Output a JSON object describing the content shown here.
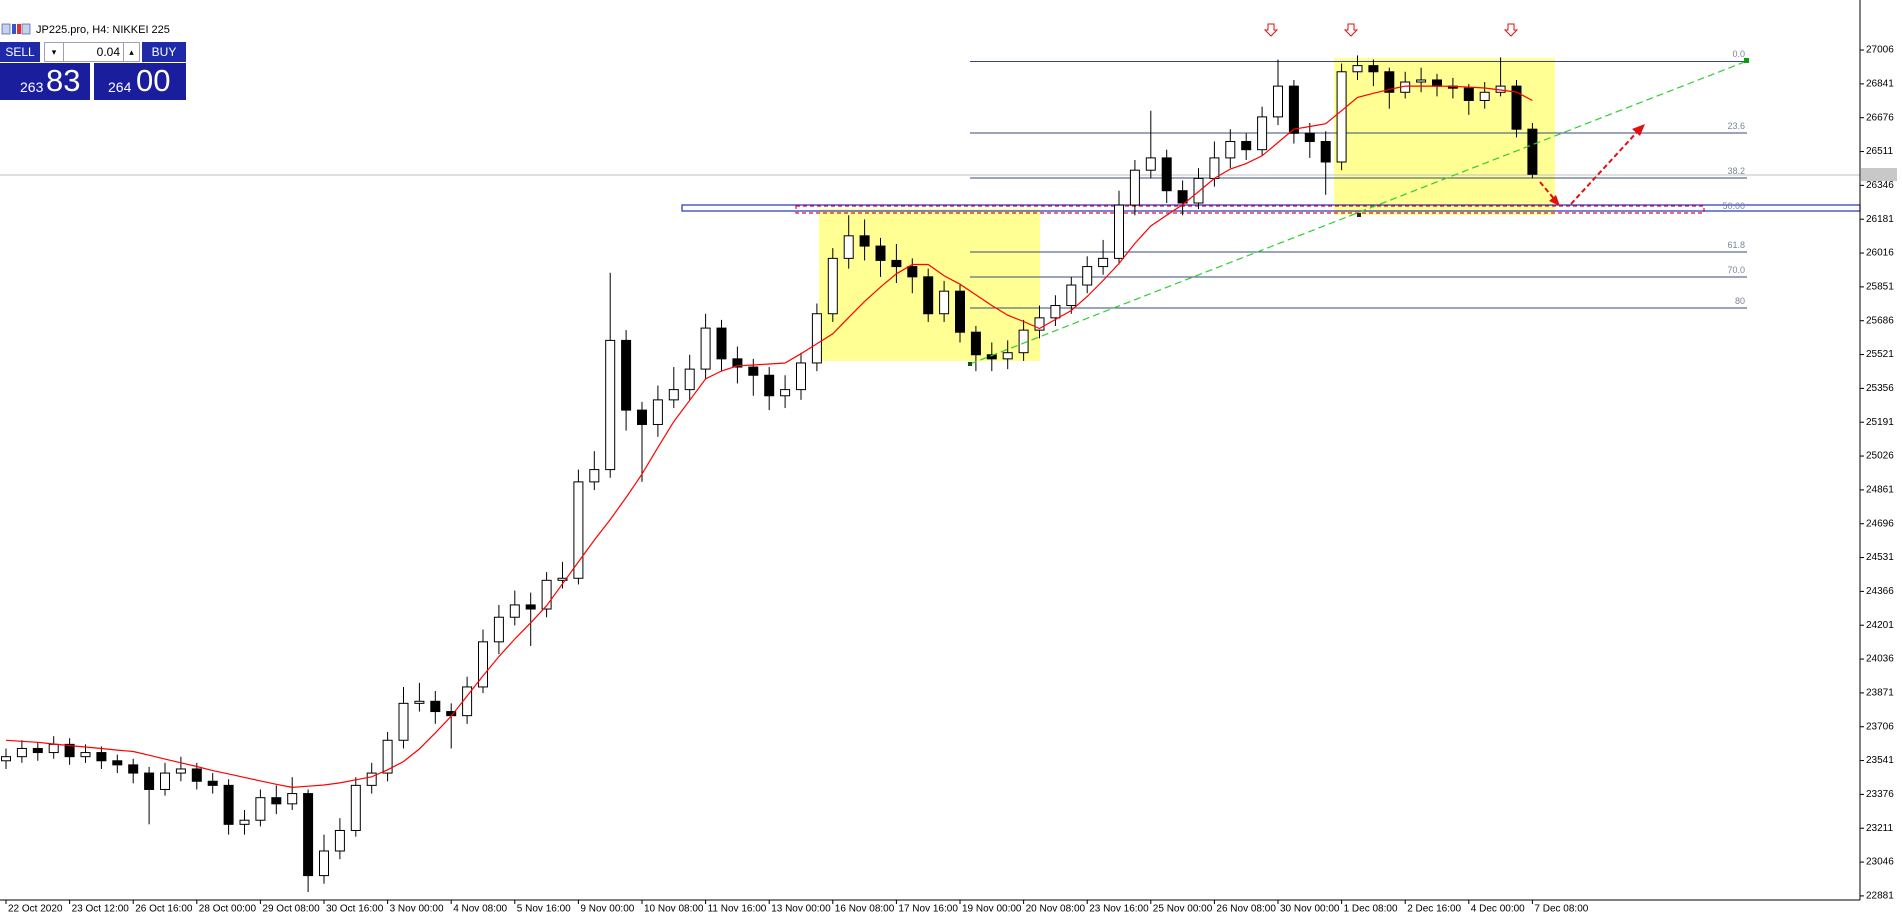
{
  "chart_data": {
    "type": "candlestick",
    "title": "JP225.pro, H4: NIKKEI 225",
    "categories": [
      "22 Oct 2020",
      null,
      null,
      null,
      "23 Oct 12:00",
      null,
      null,
      null,
      "26 Oct 16:00",
      null,
      null,
      null,
      "28 Oct 00:00",
      null,
      null,
      null,
      "29 Oct 08:00",
      null,
      null,
      null,
      "30 Oct 16:00",
      null,
      null,
      null,
      "3 Nov 00:00",
      null,
      null,
      null,
      "4 Nov 08:00",
      null,
      null,
      null,
      "5 Nov 16:00",
      null,
      null,
      null,
      "9 Nov 00:00",
      null,
      null,
      null,
      "10 Nov 08:00",
      null,
      null,
      null,
      "11 Nov 16:00",
      null,
      null,
      null,
      "13 Nov 00:00",
      null,
      null,
      null,
      "16 Nov 08:00",
      null,
      null,
      null,
      "17 Nov 16:00",
      null,
      null,
      null,
      "19 Nov 00:00",
      null,
      null,
      null,
      "20 Nov 08:00",
      null,
      null,
      null,
      "23 Nov 16:00",
      null,
      null,
      null,
      "25 Nov 00:00",
      null,
      null,
      null,
      "26 Nov 08:00",
      null,
      null,
      null,
      "30 Nov 00:00",
      null,
      null,
      null,
      "1 Dec 08:00",
      null,
      null,
      null,
      "2 Dec 16:00",
      null,
      null,
      null,
      "4 Dec 00:00",
      null,
      null,
      null,
      "7 Dec 08:00"
    ],
    "open": [
      23540,
      23560,
      23600,
      23580,
      23620,
      23560,
      23580,
      23540,
      23520,
      23480,
      23400,
      23480,
      23500,
      23440,
      23420,
      23230,
      23250,
      23360,
      23330,
      23380,
      22980,
      23100,
      23200,
      23420,
      23480,
      23640,
      23820,
      23830,
      23780,
      23760,
      23900,
      24120,
      24240,
      24300,
      24280,
      24420,
      24430,
      24900,
      24960,
      25590,
      25250,
      25180,
      25300,
      25350,
      25450,
      25650,
      25500,
      25460,
      25420,
      25320,
      25350,
      25480,
      25720,
      25990,
      26100,
      26050,
      25980,
      25950,
      25900,
      25720,
      25830,
      25630,
      25520,
      25500,
      25530,
      25640,
      25700,
      25760,
      25860,
      25950,
      25990,
      26250,
      26420,
      26480,
      26320,
      26260,
      26380,
      26480,
      26560,
      26520,
      26680,
      26830,
      26600,
      26560,
      26460,
      26900,
      26930,
      26900,
      26800,
      26850,
      26860,
      26830,
      26820,
      26760,
      26800,
      26830,
      26620
    ],
    "high": [
      23600,
      23640,
      23630,
      23660,
      23650,
      23620,
      23610,
      23570,
      23550,
      23510,
      23530,
      23560,
      23530,
      23480,
      23450,
      23300,
      23400,
      23420,
      23460,
      23400,
      23180,
      23260,
      23460,
      23530,
      23680,
      23900,
      23920,
      23880,
      23820,
      23950,
      24180,
      24300,
      24370,
      24360,
      24460,
      24510,
      24960,
      25050,
      25920,
      25640,
      25290,
      25370,
      25460,
      25520,
      25720,
      25690,
      25560,
      25500,
      25460,
      25420,
      25530,
      25770,
      26040,
      26200,
      26180,
      26090,
      26060,
      25990,
      25940,
      25880,
      25860,
      25660,
      25580,
      25590,
      25690,
      25760,
      25810,
      25900,
      26000,
      26080,
      26320,
      26470,
      26710,
      26520,
      26370,
      26430,
      26560,
      26620,
      26600,
      26730,
      26960,
      26860,
      26650,
      26610,
      26940,
      26980,
      26960,
      26920,
      26900,
      26920,
      26890,
      26870,
      26840,
      26850,
      26970,
      26860,
      26650
    ],
    "low": [
      23500,
      23530,
      23540,
      23550,
      23520,
      23530,
      23500,
      23480,
      23430,
      23230,
      23370,
      23440,
      23400,
      23380,
      23180,
      23180,
      23220,
      23280,
      23300,
      22900,
      22940,
      23060,
      23170,
      23380,
      23440,
      23600,
      23780,
      23720,
      23600,
      23720,
      23870,
      24060,
      24200,
      24100,
      24240,
      24380,
      24400,
      24860,
      24920,
      25150,
      24900,
      25120,
      25260,
      25300,
      25400,
      25440,
      25380,
      25320,
      25250,
      25260,
      25300,
      25440,
      25680,
      25940,
      25980,
      25900,
      25870,
      25820,
      25680,
      25680,
      25580,
      25440,
      25440,
      25450,
      25490,
      25600,
      25660,
      25720,
      25820,
      25910,
      25960,
      26200,
      26380,
      26260,
      26200,
      26230,
      26340,
      26430,
      26470,
      26490,
      26640,
      26550,
      26480,
      26300,
      26420,
      26860,
      26830,
      26720,
      26770,
      26800,
      26780,
      26770,
      26690,
      26720,
      26780,
      26580,
      26380
    ],
    "close": [
      23560,
      23600,
      23580,
      23620,
      23560,
      23580,
      23540,
      23520,
      23480,
      23400,
      23480,
      23500,
      23440,
      23420,
      23230,
      23250,
      23360,
      23330,
      23380,
      22980,
      23100,
      23200,
      23420,
      23480,
      23640,
      23820,
      23830,
      23780,
      23760,
      23900,
      24120,
      24240,
      24300,
      24280,
      24420,
      24430,
      24900,
      24960,
      25590,
      25250,
      25180,
      25300,
      25350,
      25450,
      25650,
      25500,
      25460,
      25420,
      25320,
      25350,
      25480,
      25720,
      25990,
      26100,
      26050,
      25980,
      25950,
      25900,
      25720,
      25830,
      25630,
      25520,
      25500,
      25530,
      25640,
      25700,
      25760,
      25860,
      25950,
      25990,
      26250,
      26420,
      26480,
      26320,
      26260,
      26380,
      26480,
      26560,
      26520,
      26680,
      26830,
      26600,
      26560,
      26460,
      26900,
      26930,
      26900,
      26800,
      26850,
      26860,
      26830,
      26820,
      26760,
      26800,
      26830,
      26620,
      26400
    ],
    "up_color": "#ffffff",
    "down_color": "#000000",
    "ma": {
      "color": "#ff0000",
      "values": [
        23640,
        23635,
        23630,
        23622,
        23614,
        23607,
        23600,
        23592,
        23585,
        23567,
        23548,
        23530,
        23512,
        23492,
        23476,
        23459,
        23442,
        23425,
        23410,
        23416,
        23422,
        23432,
        23447,
        23462,
        23496,
        23536,
        23598,
        23676,
        23758,
        23856,
        23954,
        24048,
        24134,
        24213,
        24296,
        24403,
        24510,
        24616,
        24716,
        24824,
        24938,
        25068,
        25194,
        25298,
        25402,
        25441,
        25466,
        25470,
        25475,
        25480,
        25525,
        25574,
        25622,
        25702,
        25780,
        25850,
        25915,
        25960,
        25960,
        25905,
        25864,
        25812,
        25760,
        25713,
        25682,
        25648,
        25692,
        25736,
        25804,
        25882,
        25965,
        26063,
        26148,
        26200,
        26252,
        26315,
        26380,
        26426,
        26452,
        26490,
        26555,
        26620,
        26633,
        26647,
        26710,
        26775,
        26795,
        26814,
        26830,
        26830,
        26830,
        26829,
        26825,
        26821,
        26811,
        26801,
        26760
      ]
    },
    "ylim": [
      22861,
      27250
    ],
    "yticks": [
      27006,
      26841,
      26676,
      26511,
      26346,
      26181,
      26016,
      25851,
      25686,
      25521,
      25356,
      25191,
      25026,
      24861,
      24696,
      24531,
      24366,
      24201,
      24036,
      23871,
      23706,
      23541,
      23376,
      23211,
      23046,
      22881
    ]
  },
  "trade_panel": {
    "sell": "SELL",
    "lot": "0.04",
    "buy": "BUY",
    "bid": [
      "263",
      "83"
    ],
    "ask": [
      "264",
      "00"
    ]
  },
  "fibonacci_labels": [
    "0.0",
    "23.6",
    "38.2",
    "50.00",
    "61.8",
    "70.0",
    "80"
  ]
}
